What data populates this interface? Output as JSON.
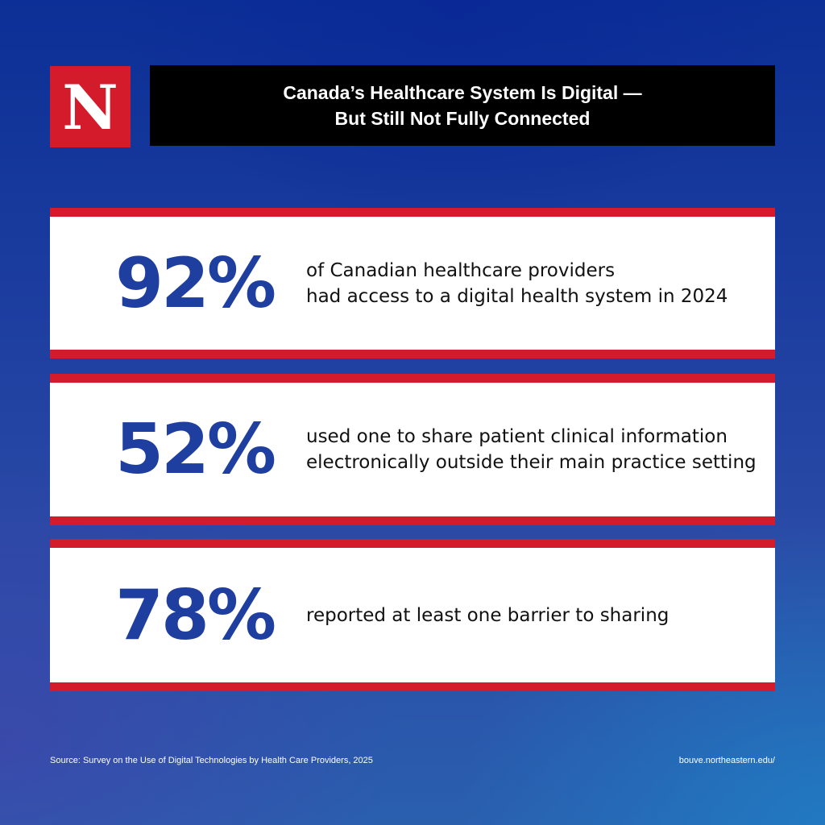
{
  "logo": {
    "letter": "N"
  },
  "header": {
    "title_line1": "Canada’s Healthcare System Is Digital —",
    "title_line2": "But Still Not Fully Connected"
  },
  "stats": [
    {
      "value": "92%",
      "lines": [
        "of Canadian healthcare providers",
        "had access to a digital health system in 2024"
      ]
    },
    {
      "value": "52%",
      "lines": [
        "used one to share patient clinical information",
        "electronically outside their main practice setting"
      ]
    },
    {
      "value": "78%",
      "lines": [
        "reported at least one barrier to sharing"
      ]
    }
  ],
  "footer": {
    "source": "Source: Survey on the Use of Digital Technologies by Health Care Providers, 2025",
    "url": "bouve.northeastern.edu/"
  },
  "colors": {
    "brand_red": "#d41b2c",
    "stat_blue": "#1f3fa0",
    "title_bg": "#000000"
  }
}
